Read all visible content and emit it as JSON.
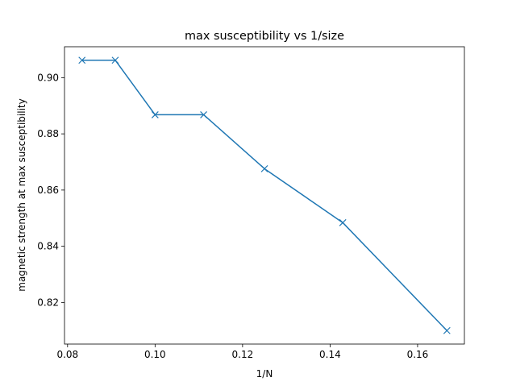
{
  "chart_data": {
    "type": "line",
    "title": "max susceptibility vs 1/size",
    "xlabel": "1/N",
    "ylabel": "magnetic strength at max susceptibility",
    "xlim": [
      0.0793,
      0.1707
    ],
    "ylim": [
      0.8052,
      0.911
    ],
    "xticks": [
      0.08,
      0.1,
      0.12,
      0.14,
      0.16
    ],
    "xtick_labels": [
      "0.08",
      "0.10",
      "0.12",
      "0.14",
      "0.16"
    ],
    "yticks": [
      0.82,
      0.84,
      0.86,
      0.88,
      0.9
    ],
    "ytick_labels": [
      "0.82",
      "0.84",
      "0.86",
      "0.88",
      "0.90"
    ],
    "grid": false,
    "series": [
      {
        "color": "#1f77b4",
        "marker": "x",
        "x": [
          0.0833,
          0.0909,
          0.1,
          0.1111,
          0.125,
          0.1429,
          0.1667
        ],
        "y": [
          0.9062,
          0.9062,
          0.8868,
          0.8868,
          0.8676,
          0.8484,
          0.81
        ]
      }
    ]
  }
}
